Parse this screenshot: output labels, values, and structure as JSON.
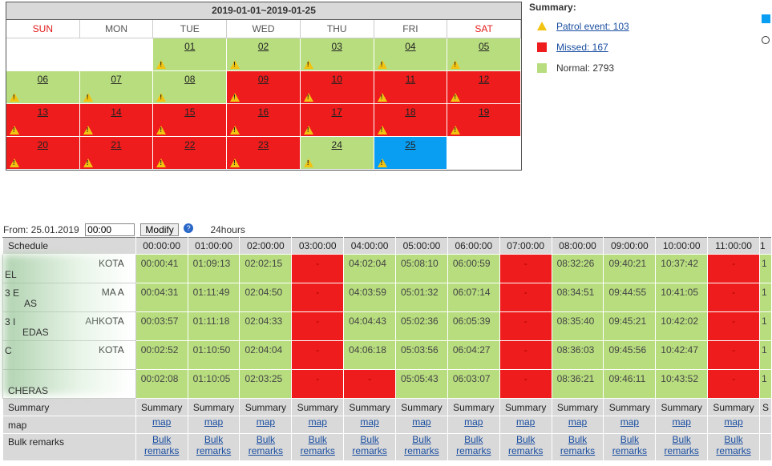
{
  "calendar": {
    "title": "2019-01-01~2019-01-25",
    "weekdays": [
      "SUN",
      "MON",
      "TUE",
      "WED",
      "THU",
      "FRI",
      "SAT"
    ],
    "days": [
      {
        "n": "",
        "s": "empty"
      },
      {
        "n": "",
        "s": "empty"
      },
      {
        "n": "01",
        "s": "green"
      },
      {
        "n": "02",
        "s": "green"
      },
      {
        "n": "03",
        "s": "green"
      },
      {
        "n": "04",
        "s": "green"
      },
      {
        "n": "05",
        "s": "green"
      },
      {
        "n": "06",
        "s": "green"
      },
      {
        "n": "07",
        "s": "green"
      },
      {
        "n": "08",
        "s": "green"
      },
      {
        "n": "09",
        "s": "red"
      },
      {
        "n": "10",
        "s": "red"
      },
      {
        "n": "11",
        "s": "red"
      },
      {
        "n": "12",
        "s": "red"
      },
      {
        "n": "13",
        "s": "red"
      },
      {
        "n": "14",
        "s": "red"
      },
      {
        "n": "15",
        "s": "red"
      },
      {
        "n": "16",
        "s": "red"
      },
      {
        "n": "17",
        "s": "red"
      },
      {
        "n": "18",
        "s": "red"
      },
      {
        "n": "19",
        "s": "red"
      },
      {
        "n": "20",
        "s": "red"
      },
      {
        "n": "21",
        "s": "red"
      },
      {
        "n": "22",
        "s": "red"
      },
      {
        "n": "23",
        "s": "red"
      },
      {
        "n": "24",
        "s": "green"
      },
      {
        "n": "25",
        "s": "blue"
      },
      {
        "n": "",
        "s": "empty"
      }
    ]
  },
  "summary": {
    "title": "Summary:",
    "patrol": "Patrol event: 103",
    "missed": "Missed: 167",
    "normal": "Normal: 2793"
  },
  "controls": {
    "from_label": "From: 25.01.2019",
    "time_value": "00:00",
    "modify_label": "Modify",
    "help": "?",
    "hours_label": "24hours"
  },
  "schedule": {
    "header_first": "Schedule",
    "times": [
      "00:00:00",
      "01:00:00",
      "02:00:00",
      "03:00:00",
      "04:00:00",
      "05:00:00",
      "06:00:00",
      "07:00:00",
      "08:00:00",
      "09:00:00",
      "10:00:00",
      "11:00:00",
      "1"
    ],
    "names": [
      "KOTA",
      "MA   A",
      "AHKOTA",
      "KOTA",
      ""
    ],
    "name_fragments": [
      "EL",
      "3 E",
      "AS",
      "3 I",
      "EDAS",
      "C",
      "CHERAS"
    ],
    "rows": [
      [
        "00:00:41",
        "01:09:13",
        "02:02:15",
        "-",
        "04:02:04",
        "05:08:10",
        "06:00:59",
        "-",
        "08:32:26",
        "09:40:21",
        "10:37:42",
        "-",
        "1"
      ],
      [
        "00:04:31",
        "01:11:49",
        "02:04:50",
        "-",
        "04:03:59",
        "05:01:32",
        "06:07:14",
        "-",
        "08:34:51",
        "09:44:55",
        "10:41:05",
        "-",
        "1"
      ],
      [
        "00:03:57",
        "01:11:18",
        "02:04:33",
        "-",
        "04:04:43",
        "05:02:36",
        "06:05:39",
        "-",
        "08:35:40",
        "09:45:21",
        "10:42:02",
        "-",
        "1"
      ],
      [
        "00:02:52",
        "01:10:50",
        "02:04:04",
        "-",
        "04:06:18",
        "05:03:56",
        "06:04:27",
        "-",
        "08:36:03",
        "09:45:56",
        "10:42:47",
        "-",
        "1"
      ],
      [
        "00:02:08",
        "01:10:05",
        "02:03:25",
        "-",
        "-",
        "05:05:43",
        "06:03:07",
        "-",
        "08:36:21",
        "09:46:11",
        "10:43:52",
        "-",
        "1"
      ]
    ],
    "summary_label": "Summary",
    "summary_cell": "Summary",
    "map_label": "map",
    "map_cell": "map",
    "bulk_label": "Bulk remarks",
    "bulk_line1": "Bulk",
    "bulk_line2": "remarks",
    "last_partial": "S"
  }
}
